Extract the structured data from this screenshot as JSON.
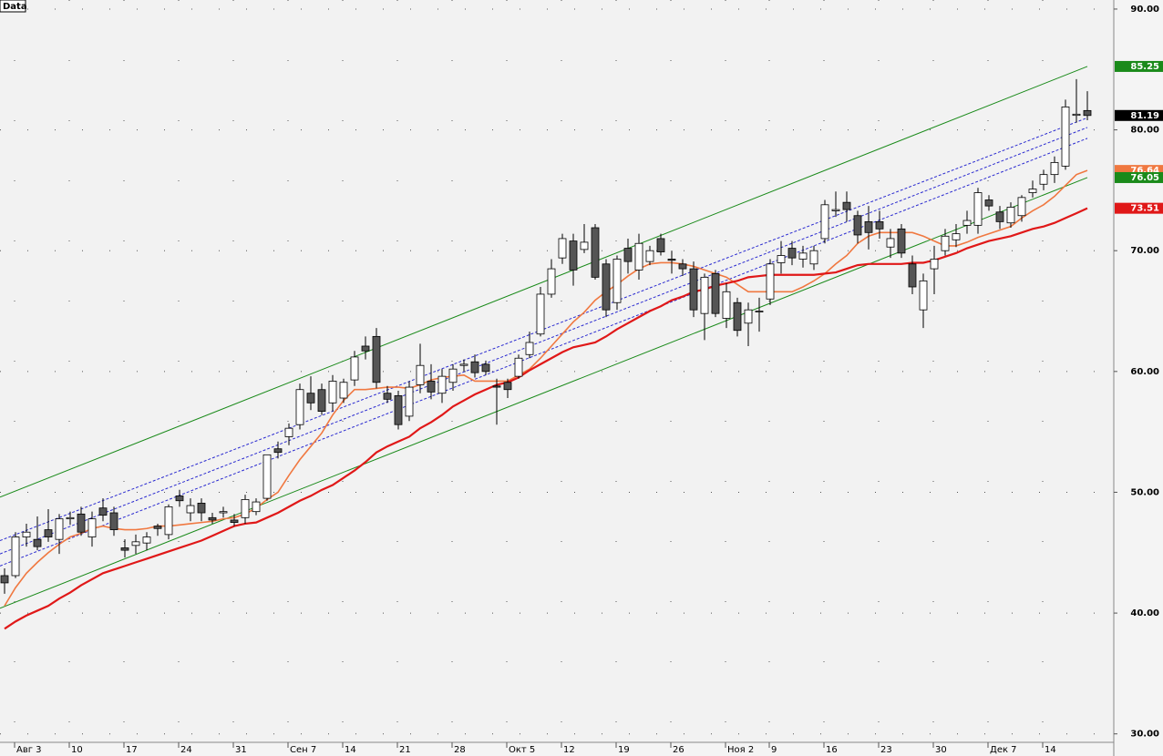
{
  "chart_data": {
    "type": "candlestick",
    "title": "Data",
    "categories": [
      null,
      "Авг 3",
      null,
      null,
      null,
      null,
      "10",
      null,
      null,
      null,
      null,
      "17",
      null,
      null,
      null,
      null,
      "24",
      null,
      null,
      null,
      null,
      "31",
      null,
      null,
      null,
      null,
      "Сен 7",
      null,
      null,
      null,
      null,
      "14",
      null,
      null,
      null,
      null,
      "21",
      null,
      null,
      null,
      null,
      "28",
      null,
      null,
      null,
      null,
      "Окт 5",
      null,
      null,
      null,
      null,
      "12",
      null,
      null,
      null,
      null,
      "19",
      null,
      null,
      null,
      null,
      "26",
      null,
      null,
      null,
      null,
      "Ноя 2",
      null,
      null,
      null,
      "9",
      null,
      null,
      null,
      null,
      "16",
      null,
      null,
      null,
      null,
      "23",
      null,
      null,
      null,
      null,
      "30",
      null,
      null,
      null,
      null,
      "Дек 7",
      null,
      null,
      null,
      null,
      "14",
      null,
      null,
      null,
      null
    ],
    "open": [
      43.1,
      43.1,
      46.3,
      46.1,
      46.9,
      46.1,
      47.8,
      48.2,
      46.3,
      48.7,
      48.3,
      45.4,
      45.6,
      45.8,
      47.2,
      46.5,
      49.7,
      48.3,
      49.1,
      47.9,
      48.3,
      47.7,
      47.9,
      48.4,
      49.5,
      53.6,
      54.6,
      55.6,
      58.2,
      58.5,
      57.4,
      57.8,
      59.3,
      62.1,
      62.9,
      58.2,
      58.0,
      56.3,
      58.9,
      59.2,
      58.2,
      59.1,
      60.5,
      60.8,
      60.6,
      58.8,
      59.1,
      59.6,
      61.4,
      63.1,
      66.4,
      69.4,
      70.8,
      70.1,
      71.9,
      68.9,
      65.7,
      70.2,
      68.4,
      69.1,
      71.0,
      69.3,
      68.9,
      68.5,
      64.8,
      68.1,
      64.4,
      65.7,
      64.0,
      65.0,
      66.0,
      69.0,
      70.2,
      69.3,
      68.9,
      71.0,
      73.3,
      74.0,
      72.9,
      72.4,
      72.4,
      70.3,
      71.8,
      68.9,
      65.1,
      68.5,
      70.0,
      70.9,
      72.1,
      72.1,
      74.2,
      73.2,
      72.3,
      72.9,
      74.8,
      75.5,
      76.3,
      77.0,
      81.2,
      81.6
    ],
    "high": [
      43.7,
      46.7,
      47.4,
      48.0,
      48.6,
      48.2,
      48.4,
      48.8,
      48.4,
      49.5,
      48.8,
      46.1,
      46.5,
      46.7,
      47.4,
      49.0,
      50.2,
      49.5,
      49.5,
      48.3,
      48.8,
      48.2,
      49.8,
      49.5,
      53.1,
      54.2,
      55.7,
      59.0,
      59.6,
      59.0,
      59.7,
      59.4,
      61.7,
      62.9,
      63.6,
      58.8,
      58.4,
      59.2,
      62.3,
      60.6,
      60.2,
      60.6,
      61.0,
      61.4,
      60.9,
      59.4,
      59.4,
      61.4,
      63.3,
      67.0,
      69.3,
      71.4,
      71.4,
      72.2,
      72.2,
      69.3,
      69.6,
      71.0,
      71.4,
      70.4,
      71.4,
      70.0,
      69.3,
      69.1,
      68.1,
      68.4,
      67.3,
      66.1,
      65.7,
      66.1,
      69.3,
      70.8,
      70.8,
      70.4,
      70.4,
      74.2,
      74.9,
      74.9,
      73.3,
      73.7,
      73.3,
      71.8,
      72.2,
      69.6,
      68.1,
      70.4,
      71.8,
      72.2,
      73.3,
      75.2,
      74.6,
      73.7,
      74.0,
      74.6,
      75.8,
      76.7,
      77.8,
      82.5,
      84.2,
      83.2
    ],
    "low": [
      41.6,
      42.9,
      45.5,
      45.2,
      45.9,
      44.9,
      47.3,
      46.4,
      45.5,
      47.6,
      46.4,
      44.6,
      44.9,
      45.2,
      46.4,
      46.1,
      48.8,
      47.6,
      47.6,
      47.4,
      47.9,
      47.2,
      47.4,
      48.1,
      49.3,
      52.8,
      53.9,
      55.2,
      56.8,
      56.4,
      56.7,
      57.4,
      58.8,
      61.0,
      58.6,
      57.4,
      55.2,
      55.9,
      58.2,
      57.7,
      57.4,
      58.4,
      60.0,
      59.5,
      59.7,
      55.6,
      57.8,
      59.4,
      61.1,
      62.9,
      66.1,
      68.9,
      67.1,
      69.8,
      67.6,
      64.5,
      65.1,
      68.1,
      67.6,
      68.8,
      69.6,
      68.1,
      67.9,
      64.5,
      62.6,
      64.5,
      63.6,
      62.9,
      62.1,
      63.3,
      65.5,
      68.1,
      68.8,
      68.6,
      68.4,
      70.6,
      72.8,
      72.4,
      70.6,
      70.1,
      71.0,
      69.4,
      69.4,
      66.4,
      63.6,
      66.4,
      69.6,
      70.3,
      71.4,
      71.4,
      73.3,
      71.8,
      71.9,
      72.4,
      74.4,
      75.0,
      75.6,
      76.7,
      80.6,
      80.8
    ],
    "close": [
      42.5,
      46.3,
      46.7,
      45.5,
      46.3,
      47.8,
      47.9,
      46.7,
      47.8,
      48.1,
      46.9,
      45.2,
      45.9,
      46.3,
      47.0,
      48.8,
      49.3,
      48.9,
      48.3,
      47.7,
      48.4,
      47.5,
      49.4,
      49.2,
      53.1,
      53.3,
      55.3,
      58.5,
      57.4,
      56.7,
      59.2,
      59.1,
      61.2,
      61.7,
      59.1,
      57.7,
      55.6,
      58.7,
      60.5,
      58.3,
      59.6,
      60.2,
      60.6,
      59.9,
      60.0,
      58.7,
      58.5,
      61.1,
      62.4,
      66.4,
      68.5,
      71.0,
      68.4,
      70.7,
      67.8,
      65.1,
      69.3,
      69.1,
      70.6,
      70.0,
      69.9,
      69.2,
      68.5,
      65.1,
      67.8,
      64.8,
      66.6,
      63.4,
      65.1,
      65.0,
      68.9,
      69.6,
      69.4,
      69.8,
      70.0,
      73.8,
      73.4,
      73.4,
      71.3,
      71.5,
      71.8,
      71.0,
      69.8,
      67.0,
      67.5,
      69.3,
      71.2,
      71.4,
      72.5,
      74.8,
      73.7,
      72.4,
      73.6,
      74.4,
      75.1,
      76.3,
      77.3,
      81.9,
      81.3,
      81.19
    ],
    "up_color": "#ffffff",
    "down_color": "#555555",
    "lines": [
      {
        "color": "#f07840",
        "values": [
          40.6,
          42.1,
          43.3,
          44.2,
          45.0,
          45.7,
          46.3,
          46.6,
          47.0,
          47.2,
          47.0,
          46.9,
          46.9,
          47.0,
          47.2,
          47.2,
          47.3,
          47.4,
          47.5,
          47.6,
          47.8,
          47.9,
          48.2,
          48.7,
          49.4,
          50.0,
          51.4,
          52.7,
          53.8,
          54.9,
          56.4,
          57.6,
          58.5,
          58.5,
          58.6,
          58.7,
          58.7,
          58.6,
          58.9,
          59.3,
          59.5,
          59.6,
          59.7,
          59.2,
          59.2,
          59.2,
          59.2,
          59.7,
          60.2,
          61.1,
          62.1,
          63.1,
          64.1,
          64.9,
          65.9,
          66.6,
          67.2,
          67.9,
          68.5,
          68.9,
          69.0,
          69.0,
          68.9,
          68.7,
          68.4,
          68.1,
          67.8,
          67.2,
          66.6,
          66.6,
          66.6,
          66.6,
          66.6,
          67.0,
          67.5,
          68.1,
          68.9,
          69.6,
          70.6,
          71.2,
          71.5,
          71.5,
          71.5,
          71.5,
          71.2,
          70.8,
          70.4,
          70.4,
          70.7,
          71.1,
          71.4,
          71.7,
          72.0,
          72.7,
          73.3,
          73.8,
          74.5,
          75.4,
          76.3,
          76.64
        ]
      },
      {
        "color": "#e01818",
        "values": [
          38.7,
          39.3,
          39.8,
          40.2,
          40.6,
          41.2,
          41.7,
          42.3,
          42.8,
          43.3,
          43.6,
          43.9,
          44.2,
          44.5,
          44.8,
          45.1,
          45.4,
          45.7,
          46.0,
          46.4,
          46.8,
          47.2,
          47.4,
          47.5,
          47.9,
          48.3,
          48.8,
          49.3,
          49.7,
          50.2,
          50.6,
          51.2,
          51.8,
          52.5,
          53.3,
          53.8,
          54.2,
          54.6,
          55.3,
          55.8,
          56.4,
          57.1,
          57.6,
          58.1,
          58.5,
          58.9,
          59.1,
          59.5,
          60.1,
          60.6,
          61.1,
          61.6,
          62.0,
          62.2,
          62.4,
          62.9,
          63.5,
          64.0,
          64.5,
          65.0,
          65.4,
          65.9,
          66.2,
          66.6,
          66.8,
          67.1,
          67.3,
          67.5,
          67.8,
          67.9,
          68.0,
          68.0,
          68.0,
          68.0,
          68.0,
          68.1,
          68.2,
          68.5,
          68.8,
          68.9,
          68.9,
          68.9,
          68.9,
          69.0,
          69.0,
          69.2,
          69.5,
          69.8,
          70.2,
          70.5,
          70.8,
          71.0,
          71.2,
          71.5,
          71.8,
          72.0,
          72.3,
          72.7,
          73.1,
          73.51
        ]
      }
    ],
    "trendlines": [
      {
        "color": "#1a8a1a",
        "dashed": false,
        "values": [
          49.6,
          85.25
        ]
      },
      {
        "color": "#1a8a1a",
        "dashed": false,
        "values": [
          40.4,
          76.05
        ]
      },
      {
        "color": "#2a2ad0",
        "dashed": true,
        "values": [
          46.0,
          81.0
        ]
      },
      {
        "color": "#2a2ad0",
        "dashed": true,
        "values": [
          44.9,
          80.2
        ]
      },
      {
        "color": "#2a2ad0",
        "dashed": true,
        "values": [
          43.9,
          79.3
        ]
      }
    ],
    "price_labels": [
      {
        "value": 85.25,
        "color": "#1a8a1a"
      },
      {
        "value": 81.19,
        "color": "#000000"
      },
      {
        "value": 76.64,
        "color": "#f07840"
      },
      {
        "value": 76.05,
        "color": "#1a8a1a"
      },
      {
        "value": 73.51,
        "color": "#e01818"
      }
    ],
    "ylim": [
      29.3,
      90.75
    ],
    "yticks": [
      {
        "value": 30,
        "label": "30.00"
      },
      {
        "value": 40,
        "label": "40.00"
      },
      {
        "value": 50,
        "label": "50.00"
      },
      {
        "value": 60,
        "label": "60.00"
      },
      {
        "value": 70,
        "label": "70.00"
      },
      {
        "value": 80,
        "label": "80.00"
      },
      {
        "value": 90,
        "label": "90.00"
      }
    ],
    "grid": true
  }
}
